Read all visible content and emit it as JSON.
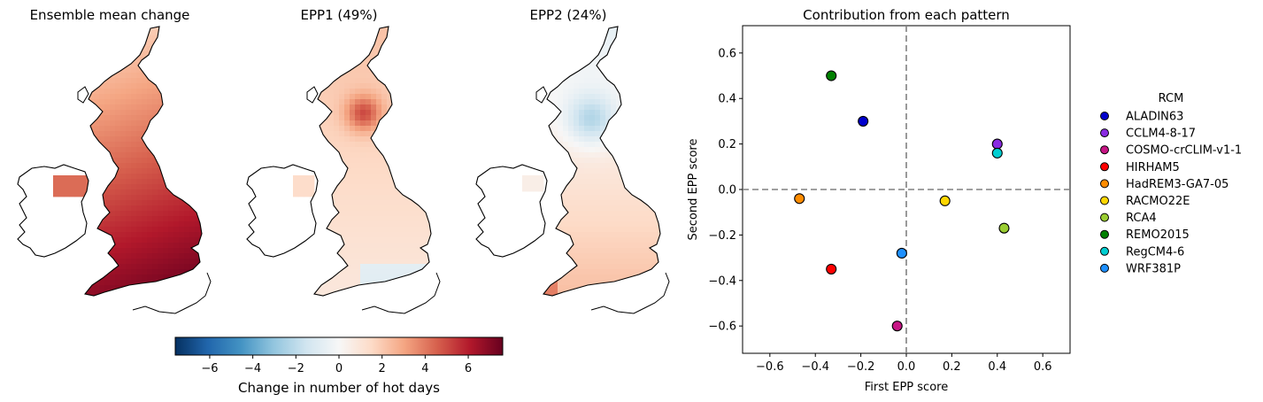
{
  "maps": [
    {
      "title": "Ensemble mean change",
      "kind": "mean"
    },
    {
      "title": "EPP1 (49%)",
      "kind": "epp1"
    },
    {
      "title": "EPP2 (24%)",
      "kind": "epp2"
    }
  ],
  "colorbar": {
    "label": "Change in number of hot days",
    "range": [
      -7.6,
      7.6
    ],
    "ticks": [
      "−6",
      "−4",
      "−2",
      "0",
      "2",
      "4",
      "6"
    ],
    "tick_values": [
      -6,
      -4,
      -2,
      0,
      2,
      4,
      6
    ],
    "colormap": [
      "#053061",
      "#2166ac",
      "#4393c3",
      "#92c5de",
      "#d1e5f0",
      "#f7f7f7",
      "#fddbc7",
      "#f4a582",
      "#d6604d",
      "#b2182b",
      "#67001f"
    ]
  },
  "chart_data": {
    "type": "scatter",
    "title": "Contribution from each pattern",
    "xlabel": "First EPP score",
    "ylabel": "Second EPP score",
    "xlim": [
      -0.72,
      0.72
    ],
    "ylim": [
      -0.72,
      0.72
    ],
    "xticks": [
      "−0.6",
      "−0.4",
      "−0.2",
      "0.0",
      "0.2",
      "0.4",
      "0.6"
    ],
    "xtick_values": [
      -0.6,
      -0.4,
      -0.2,
      0.0,
      0.2,
      0.4,
      0.6
    ],
    "yticks": [
      "−0.6",
      "−0.4",
      "−0.2",
      "0.0",
      "0.2",
      "0.4",
      "0.6"
    ],
    "ytick_values": [
      -0.6,
      -0.4,
      -0.2,
      0.0,
      0.2,
      0.4,
      0.6
    ],
    "reference_lines": {
      "x": 0,
      "y": 0,
      "style": "dashed",
      "color": "#808080"
    },
    "legend_title": "RCM",
    "legend_position": "outside right",
    "series": [
      {
        "name": "ALADIN63",
        "color": "#0000cd",
        "x": -0.19,
        "y": 0.3
      },
      {
        "name": "CCLM4-8-17",
        "color": "#8a2be2",
        "x": 0.4,
        "y": 0.2
      },
      {
        "name": "COSMO-crCLIM-v1-1",
        "color": "#c71585",
        "x": -0.04,
        "y": -0.6
      },
      {
        "name": "HIRHAM5",
        "color": "#ff0000",
        "x": -0.33,
        "y": -0.35
      },
      {
        "name": "HadREM3-GA7-05",
        "color": "#ff8c00",
        "x": -0.47,
        "y": -0.04
      },
      {
        "name": "RACMO22E",
        "color": "#ffd700",
        "x": 0.17,
        "y": -0.05
      },
      {
        "name": "RCA4",
        "color": "#9acd32",
        "x": 0.43,
        "y": -0.17
      },
      {
        "name": "REMO2015",
        "color": "#008000",
        "x": -0.33,
        "y": 0.5
      },
      {
        "name": "RegCM4-6",
        "color": "#00ced1",
        "x": 0.4,
        "y": 0.16
      },
      {
        "name": "WRF381P",
        "color": "#1e90ff",
        "x": -0.02,
        "y": -0.28
      }
    ]
  }
}
